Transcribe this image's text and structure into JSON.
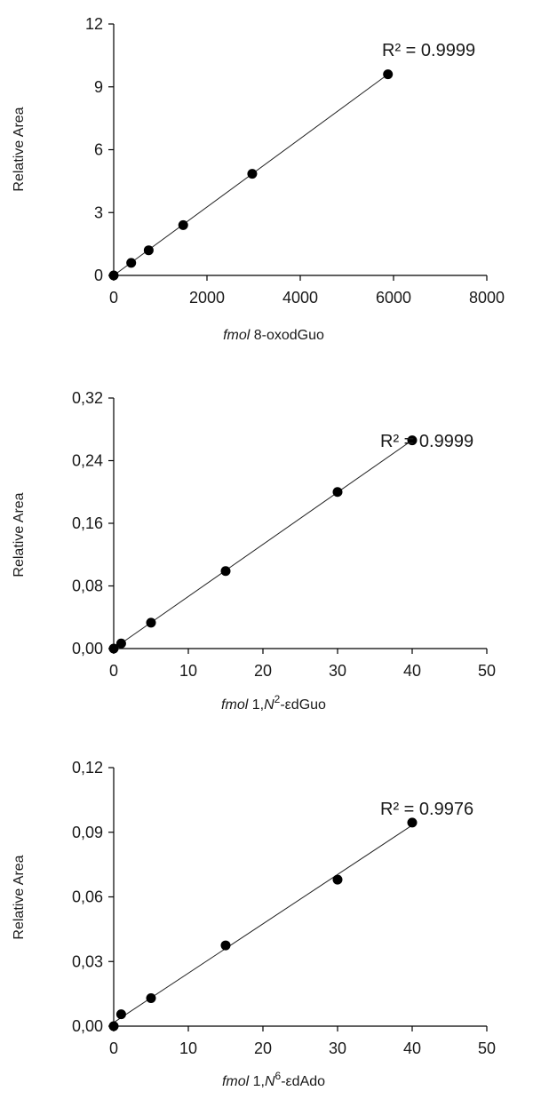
{
  "chart_data": [
    {
      "type": "scatter",
      "ylabel": "Relative Area",
      "xlabel_italic": "fmol",
      "xlabel_rest": " 8-oxodGuo",
      "xlabel_sup": "",
      "xlabel_after": "",
      "annotation": "R² = 0.9999",
      "xlim": [
        0,
        8000
      ],
      "ylim": [
        0,
        12
      ],
      "xticks": [
        "0",
        "2000",
        "4000",
        "6000",
        "8000"
      ],
      "yticks": [
        "0",
        "3",
        "6",
        "9",
        "12"
      ],
      "trendline": true,
      "points": [
        {
          "x": 0,
          "y": 0
        },
        {
          "x": 375,
          "y": 0.6
        },
        {
          "x": 750,
          "y": 1.2
        },
        {
          "x": 1490,
          "y": 2.4
        },
        {
          "x": 2970,
          "y": 4.85
        },
        {
          "x": 5880,
          "y": 9.6
        }
      ]
    },
    {
      "type": "scatter",
      "ylabel": "Relative Area",
      "xlabel_italic": "fmol",
      "xlabel_rest": " 1,",
      "xlabel_sup_base": "N",
      "xlabel_sup": "2",
      "xlabel_after": "-εdGuo",
      "annotation": "R² = 0.9999",
      "xlim": [
        0,
        50
      ],
      "ylim": [
        0,
        0.32
      ],
      "xticks": [
        "0",
        "10",
        "20",
        "30",
        "40",
        "50"
      ],
      "yticks": [
        "0,00",
        "0,08",
        "0,16",
        "0,24",
        "0,32"
      ],
      "trendline": true,
      "points": [
        {
          "x": 0,
          "y": 0
        },
        {
          "x": 1,
          "y": 0.0065
        },
        {
          "x": 5,
          "y": 0.033
        },
        {
          "x": 15,
          "y": 0.099
        },
        {
          "x": 30,
          "y": 0.2
        },
        {
          "x": 40,
          "y": 0.266
        }
      ]
    },
    {
      "type": "scatter",
      "ylabel": "Relative Area",
      "xlabel_italic": "fmol",
      "xlabel_rest": " 1,",
      "xlabel_sup_base": "N",
      "xlabel_sup": "6",
      "xlabel_after": "-εdAdo",
      "annotation": "R² = 0.9976",
      "xlim": [
        0,
        50
      ],
      "ylim": [
        0,
        0.12
      ],
      "xticks": [
        "0",
        "10",
        "20",
        "30",
        "40",
        "50"
      ],
      "yticks": [
        "0,00",
        "0,03",
        "0,06",
        "0,09",
        "0,12"
      ],
      "trendline": true,
      "points": [
        {
          "x": 0,
          "y": 0
        },
        {
          "x": 1,
          "y": 0.0055
        },
        {
          "x": 5,
          "y": 0.013
        },
        {
          "x": 15,
          "y": 0.0375
        },
        {
          "x": 30,
          "y": 0.068
        },
        {
          "x": 40,
          "y": 0.0945
        }
      ]
    }
  ]
}
